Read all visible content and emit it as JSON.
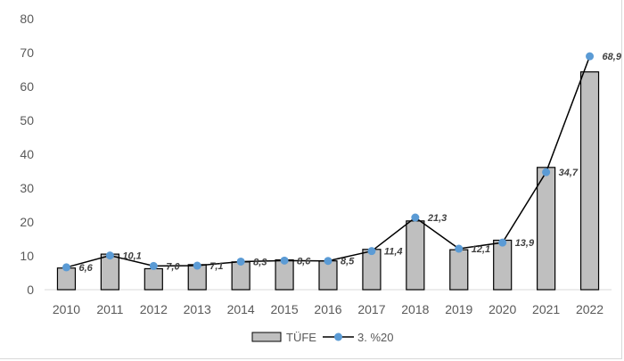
{
  "chart_data": {
    "type": "bar+line",
    "categories": [
      "2010",
      "2011",
      "2012",
      "2013",
      "2014",
      "2015",
      "2016",
      "2017",
      "2018",
      "2019",
      "2020",
      "2021",
      "2022"
    ],
    "series": [
      {
        "name": "TÜFE",
        "type": "bar",
        "color": "#bfbfbf",
        "values": [
          6.4,
          10.5,
          6.2,
          7.4,
          8.2,
          8.8,
          8.5,
          11.9,
          20.3,
          11.8,
          14.6,
          36.1,
          64.3
        ]
      },
      {
        "name": "3. %20",
        "type": "line",
        "color": "#5b9bd5",
        "values": [
          6.6,
          10.1,
          7.0,
          7.1,
          8.3,
          8.6,
          8.5,
          11.4,
          21.3,
          12.1,
          13.9,
          34.7,
          68.9
        ],
        "labels": [
          "6,6",
          "10,1",
          "7,0",
          "7,1",
          "8,3",
          "8,6",
          "8,5",
          "11,4",
          "21,3",
          "12,1",
          "13,9",
          "34,7",
          "68,9"
        ]
      }
    ],
    "ylim": [
      0,
      80
    ],
    "yticks": [
      "0",
      "10",
      "20",
      "30",
      "40",
      "50",
      "60",
      "70",
      "80"
    ],
    "grid": false,
    "legend": "bottom"
  }
}
